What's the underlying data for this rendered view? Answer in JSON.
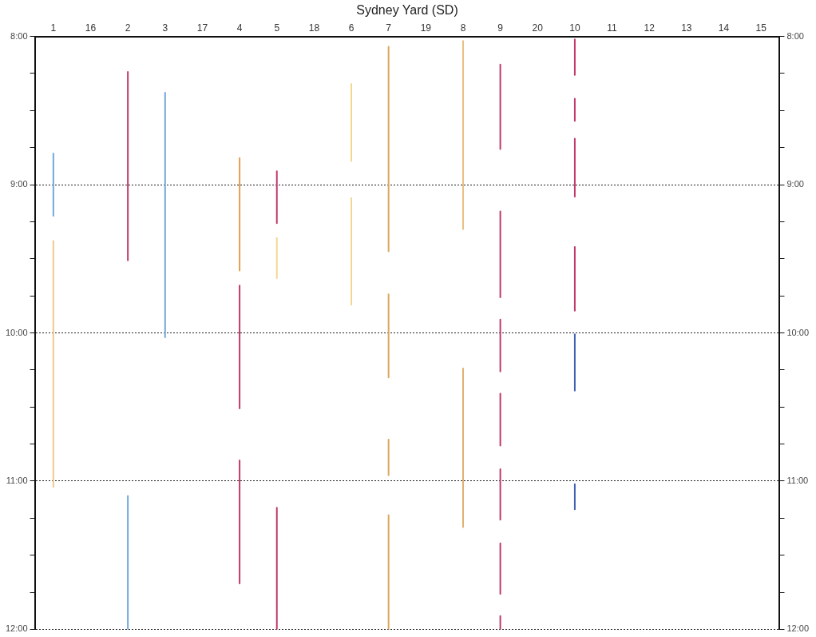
{
  "chart_data": {
    "type": "line",
    "title": "Sydney Yard (SD)",
    "categories": [
      "1",
      "16",
      "2",
      "3",
      "17",
      "4",
      "5",
      "18",
      "6",
      "7",
      "19",
      "8",
      "9",
      "20",
      "10",
      "11",
      "12",
      "13",
      "14",
      "15"
    ],
    "ylim": [
      12,
      8
    ],
    "yticks": [
      {
        "value": 8,
        "label": "8:00"
      },
      {
        "value": 8.25,
        "label": null
      },
      {
        "value": 8.5,
        "label": null
      },
      {
        "value": 8.75,
        "label": null
      },
      {
        "value": 9,
        "label": "9:00"
      },
      {
        "value": 9.25,
        "label": null
      },
      {
        "value": 9.5,
        "label": null
      },
      {
        "value": 9.75,
        "label": null
      },
      {
        "value": 10,
        "label": "10:00"
      },
      {
        "value": 10.25,
        "label": null
      },
      {
        "value": 10.5,
        "label": null
      },
      {
        "value": 10.75,
        "label": null
      },
      {
        "value": 11,
        "label": "11:00"
      },
      {
        "value": 11.25,
        "label": null
      },
      {
        "value": 11.5,
        "label": null
      },
      {
        "value": 11.75,
        "label": null
      },
      {
        "value": 12,
        "label": "12:00"
      }
    ],
    "y2lim": [
      12,
      8
    ],
    "y2ticks": [
      {
        "value": 8,
        "label": "8:00"
      },
      {
        "value": 8.25,
        "label": null
      },
      {
        "value": 8.5,
        "label": null
      },
      {
        "value": 8.75,
        "label": null
      },
      {
        "value": 9,
        "label": "9:00"
      },
      {
        "value": 9.25,
        "label": null
      },
      {
        "value": 9.5,
        "label": null
      },
      {
        "value": 9.75,
        "label": null
      },
      {
        "value": 10,
        "label": "10:00"
      },
      {
        "value": 10.25,
        "label": null
      },
      {
        "value": 10.5,
        "label": null
      },
      {
        "value": 10.75,
        "label": null
      },
      {
        "value": 11,
        "label": "11:00"
      },
      {
        "value": 11.25,
        "label": null
      },
      {
        "value": 11.5,
        "label": null
      },
      {
        "value": 11.75,
        "label": null
      },
      {
        "value": 12,
        "label": "12:00"
      }
    ],
    "grid": "y",
    "series": [
      {
        "color": "#6fa8dc",
        "x": [
          "1",
          "1"
        ],
        "values": [
          8.79,
          9.21
        ]
      },
      {
        "color": "#f0c890",
        "x": [
          "1",
          "1"
        ],
        "values": [
          9.38,
          11.04
        ]
      },
      {
        "color": "#c0396b",
        "x": [
          "2",
          "2"
        ],
        "values": [
          8.24,
          9.51
        ]
      },
      {
        "color": "#6fa8dc",
        "x": [
          "2",
          "2"
        ],
        "values": [
          11.1,
          12
        ]
      },
      {
        "color": "#6fa8dc",
        "x": [
          "3",
          "3"
        ],
        "values": [
          8.38,
          10.03
        ]
      },
      {
        "color": "#e0a050",
        "x": [
          "4",
          "4"
        ],
        "values": [
          8.82,
          9.58
        ]
      },
      {
        "color": "#c0396b",
        "x": [
          "4",
          "4"
        ],
        "values": [
          9.68,
          10.51
        ]
      },
      {
        "color": "#c0396b",
        "x": [
          "4",
          "4"
        ],
        "values": [
          10.86,
          11.69
        ]
      },
      {
        "color": "#c0396b",
        "x": [
          "5",
          "5"
        ],
        "values": [
          8.91,
          9.26
        ]
      },
      {
        "color": "#f0d890",
        "x": [
          "5",
          "5"
        ],
        "values": [
          9.36,
          9.63
        ]
      },
      {
        "color": "#c0396b",
        "x": [
          "5",
          "5"
        ],
        "values": [
          11.18,
          12
        ]
      },
      {
        "color": "#f0d890",
        "x": [
          "6",
          "6"
        ],
        "values": [
          8.32,
          8.84
        ]
      },
      {
        "color": "#f0d890",
        "x": [
          "6",
          "6"
        ],
        "values": [
          9.09,
          9.81
        ]
      },
      {
        "color": "#d9a85a",
        "x": [
          "7",
          "7"
        ],
        "values": [
          8.07,
          9.45
        ]
      },
      {
        "color": "#d9a85a",
        "x": [
          "7",
          "7"
        ],
        "values": [
          9.74,
          10.3
        ]
      },
      {
        "color": "#d9a85a",
        "x": [
          "7",
          "7"
        ],
        "values": [
          10.72,
          10.96
        ]
      },
      {
        "color": "#d9a85a",
        "x": [
          "7",
          "7"
        ],
        "values": [
          11.23,
          12
        ]
      },
      {
        "color": "#e8c080",
        "x": [
          "8",
          "8"
        ],
        "values": [
          8.03,
          9.3
        ]
      },
      {
        "color": "#e0b070",
        "x": [
          "8",
          "8"
        ],
        "values": [
          10.24,
          11.31
        ]
      },
      {
        "color": "#c0396b",
        "x": [
          "9",
          "9"
        ],
        "values": [
          8.19,
          8.76
        ]
      },
      {
        "color": "#c0396b",
        "x": [
          "9",
          "9"
        ],
        "values": [
          9.18,
          9.76
        ]
      },
      {
        "color": "#c0396b",
        "x": [
          "9",
          "9"
        ],
        "values": [
          9.91,
          10.26
        ]
      },
      {
        "color": "#c0396b",
        "x": [
          "9",
          "9"
        ],
        "values": [
          10.41,
          10.76
        ]
      },
      {
        "color": "#c0396b",
        "x": [
          "9",
          "9"
        ],
        "values": [
          10.92,
          11.26
        ]
      },
      {
        "color": "#c0396b",
        "x": [
          "9",
          "9"
        ],
        "values": [
          11.42,
          11.76
        ]
      },
      {
        "color": "#c0396b",
        "x": [
          "9",
          "9"
        ],
        "values": [
          11.91,
          12
        ]
      },
      {
        "color": "#c0396b",
        "x": [
          "10",
          "10"
        ],
        "values": [
          8.02,
          8.26
        ]
      },
      {
        "color": "#c0396b",
        "x": [
          "10",
          "10"
        ],
        "values": [
          8.42,
          8.57
        ]
      },
      {
        "color": "#c0396b",
        "x": [
          "10",
          "10"
        ],
        "values": [
          8.69,
          9.08
        ]
      },
      {
        "color": "#c0396b",
        "x": [
          "10",
          "10"
        ],
        "values": [
          9.42,
          9.85
        ]
      },
      {
        "color": "#4060b0",
        "x": [
          "10",
          "10"
        ],
        "values": [
          10.01,
          10.39
        ]
      },
      {
        "color": "#4060b0",
        "x": [
          "10",
          "10"
        ],
        "values": [
          11.02,
          11.19
        ]
      }
    ]
  }
}
